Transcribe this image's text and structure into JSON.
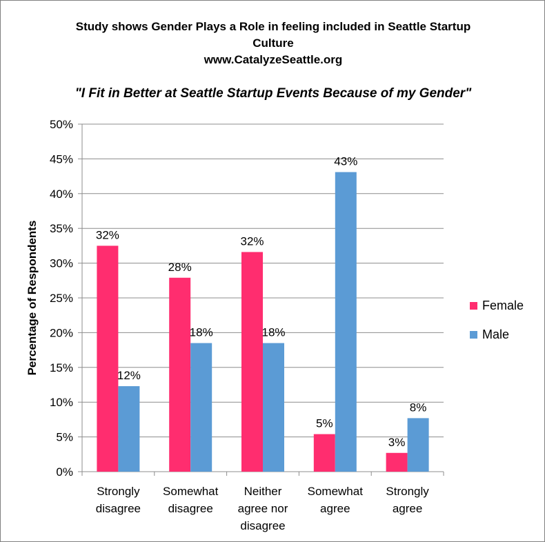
{
  "chart_data": {
    "type": "bar",
    "title_lines": [
      "Study shows Gender Plays a Role in feeling included in Seattle Startup",
      "Culture",
      "www.CatalyzeSeattle.org"
    ],
    "subtitle": "\"I Fit in Better at Seattle Startup Events Because of my Gender\"",
    "ylabel": "Percentage of Respondents",
    "xlabel": "",
    "ylim": [
      0,
      50
    ],
    "yticks": [
      0,
      5,
      10,
      15,
      20,
      25,
      30,
      35,
      40,
      45,
      50
    ],
    "ytick_labels": [
      "0%",
      "5%",
      "10%",
      "15%",
      "20%",
      "25%",
      "30%",
      "35%",
      "40%",
      "45%",
      "50%"
    ],
    "grid": true,
    "legend_position": "right",
    "categories": [
      [
        "Strongly",
        "disagree"
      ],
      [
        "Somewhat",
        "disagree"
      ],
      [
        "Neither",
        "agree nor",
        "disagree"
      ],
      [
        "Somewhat",
        "agree"
      ],
      [
        "Strongly",
        "agree"
      ]
    ],
    "series": [
      {
        "name": "Female",
        "color": "#ff2d6f",
        "values": [
          32.5,
          27.9,
          31.6,
          5.4,
          2.7
        ],
        "labels": [
          "32%",
          "28%",
          "32%",
          "5%",
          "3%"
        ]
      },
      {
        "name": "Male",
        "color": "#5b9bd5",
        "values": [
          12.3,
          18.5,
          18.5,
          43.1,
          7.7
        ],
        "labels": [
          "12%",
          "18%",
          "18%",
          "43%",
          "8%"
        ]
      }
    ]
  }
}
